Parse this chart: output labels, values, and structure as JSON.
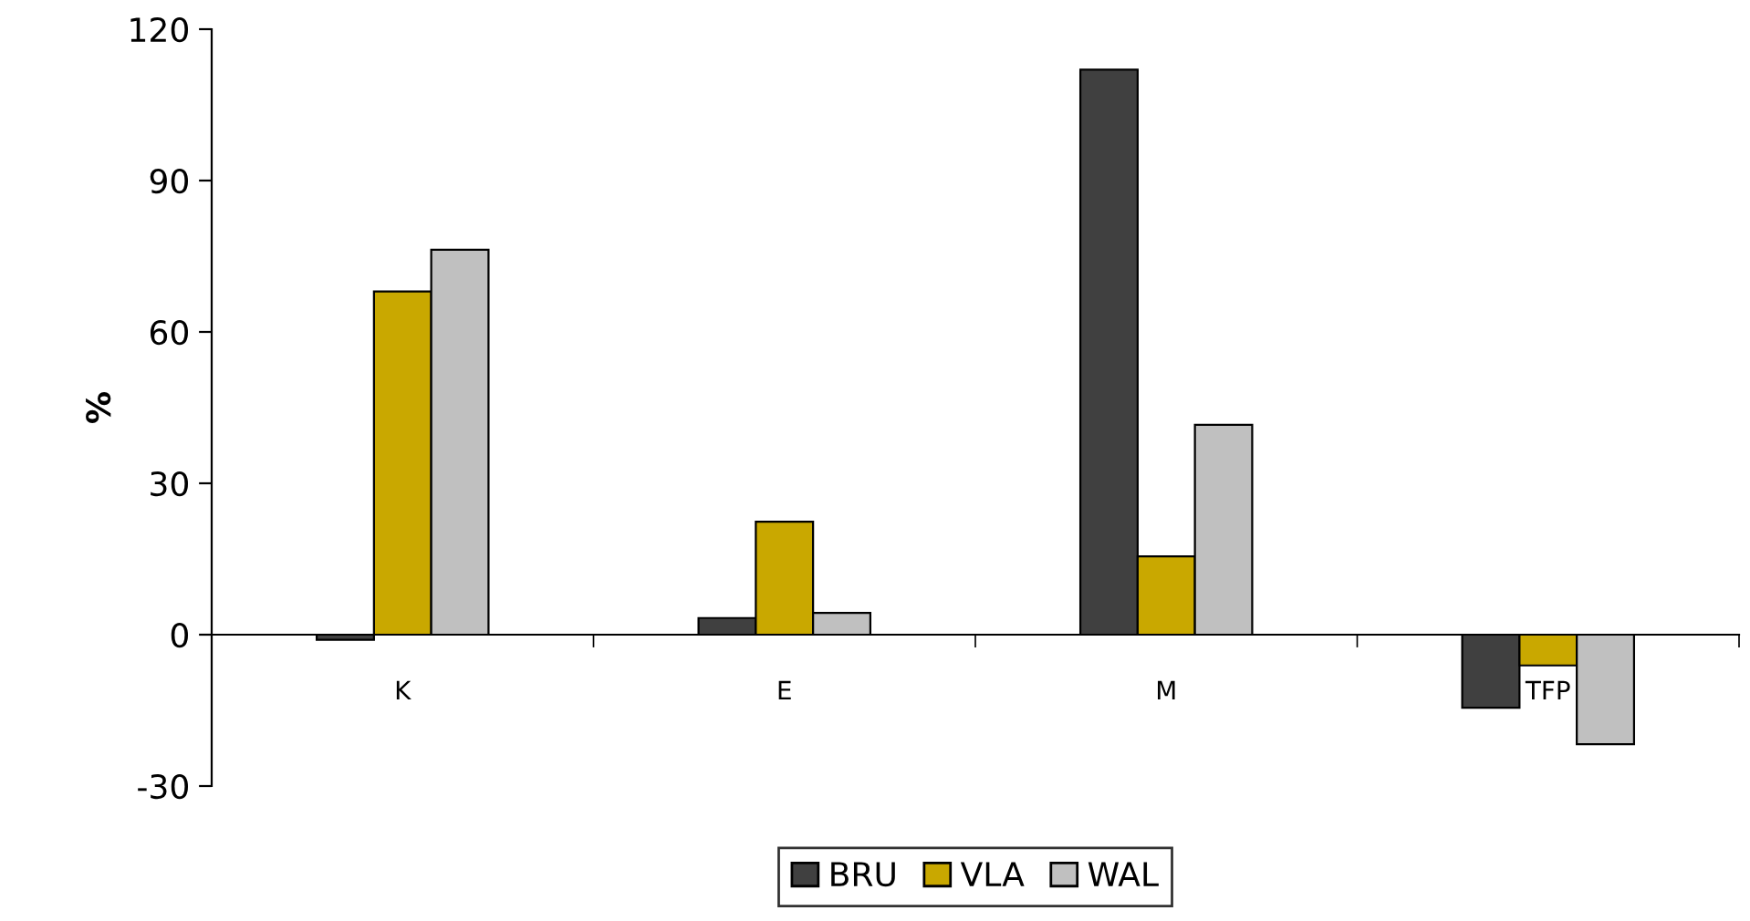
{
  "chart_data": {
    "type": "bar",
    "ylabel": "%",
    "categories": [
      "K",
      "E",
      "M",
      "TFP"
    ],
    "series": [
      {
        "name": "BRU",
        "color": "#404040",
        "values": [
          -1,
          3.3,
          112,
          -14.5
        ]
      },
      {
        "name": "VLA",
        "color": "#c9a800",
        "values": [
          68,
          22.4,
          15.5,
          -6.1
        ]
      },
      {
        "name": "WAL",
        "color": "#c0c0c0",
        "values": [
          76.3,
          4.3,
          41.6,
          -21.7
        ]
      }
    ],
    "ylim": [
      -30,
      120
    ],
    "yticks": [
      -30,
      0,
      30,
      60,
      90,
      120
    ],
    "grid": false,
    "legend": "bottom"
  }
}
